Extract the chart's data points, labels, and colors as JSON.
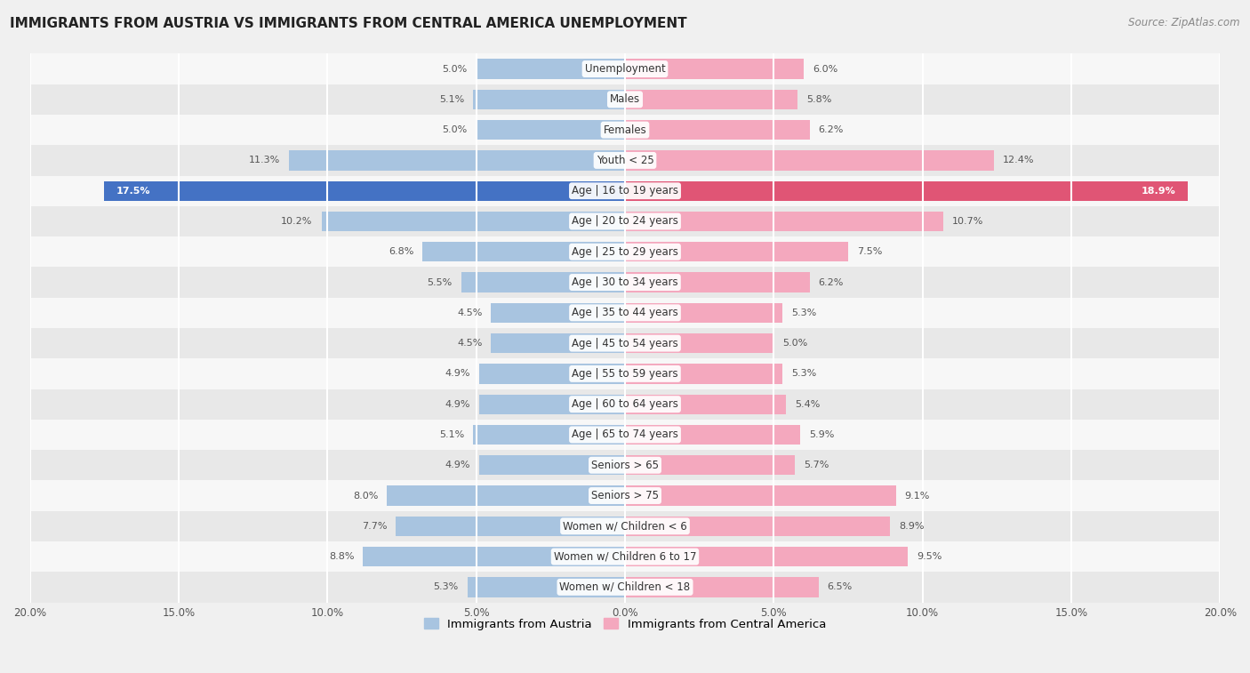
{
  "title": "IMMIGRANTS FROM AUSTRIA VS IMMIGRANTS FROM CENTRAL AMERICA UNEMPLOYMENT",
  "source": "Source: ZipAtlas.com",
  "categories": [
    "Unemployment",
    "Males",
    "Females",
    "Youth < 25",
    "Age | 16 to 19 years",
    "Age | 20 to 24 years",
    "Age | 25 to 29 years",
    "Age | 30 to 34 years",
    "Age | 35 to 44 years",
    "Age | 45 to 54 years",
    "Age | 55 to 59 years",
    "Age | 60 to 64 years",
    "Age | 65 to 74 years",
    "Seniors > 65",
    "Seniors > 75",
    "Women w/ Children < 6",
    "Women w/ Children 6 to 17",
    "Women w/ Children < 18"
  ],
  "austria_values": [
    5.0,
    5.1,
    5.0,
    11.3,
    17.5,
    10.2,
    6.8,
    5.5,
    4.5,
    4.5,
    4.9,
    4.9,
    5.1,
    4.9,
    8.0,
    7.7,
    8.8,
    5.3
  ],
  "central_america_values": [
    6.0,
    5.8,
    6.2,
    12.4,
    18.9,
    10.7,
    7.5,
    6.2,
    5.3,
    5.0,
    5.3,
    5.4,
    5.9,
    5.7,
    9.1,
    8.9,
    9.5,
    6.5
  ],
  "austria_color": "#a8c4e0",
  "central_america_color": "#f4a8be",
  "austria_highlight_color": "#4472c4",
  "central_america_highlight_color": "#e05575",
  "highlight_row": 4,
  "background_color": "#f0f0f0",
  "row_bg_light": "#f7f7f7",
  "row_bg_dark": "#e8e8e8",
  "axis_limit": 20.0,
  "legend_austria": "Immigrants from Austria",
  "legend_central_america": "Immigrants from Central America",
  "bar_height": 0.65,
  "label_fontsize": 8.0,
  "cat_label_fontsize": 8.5
}
